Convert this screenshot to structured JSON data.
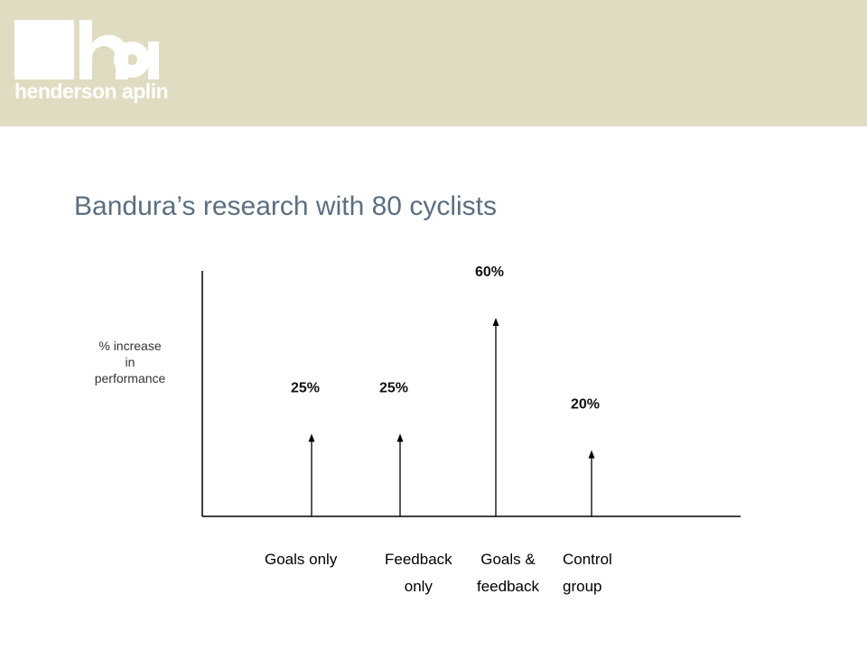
{
  "header": {
    "logo_text": "henderson aplin",
    "colors": {
      "banner": "#e0dcc2",
      "logo": "#ffffff"
    }
  },
  "title": "Bandura’s research with 80 cyclists",
  "chart_data": {
    "type": "bar",
    "ylabel_lines": [
      "% increase",
      "in",
      "performance"
    ],
    "categories": [
      {
        "line1": "Goals only",
        "line2": ""
      },
      {
        "line1": "Feedback",
        "line2": "only"
      },
      {
        "line1": "Goals &",
        "line2": "feedback"
      },
      {
        "line1": "Control",
        "line2": "group"
      }
    ],
    "values": [
      25,
      25,
      60,
      20
    ],
    "data_labels": [
      "25%",
      "25%",
      "60%",
      "20%"
    ],
    "ylim": [
      0,
      70
    ],
    "grid": false,
    "mark_style": "arrow",
    "colors": {
      "title": "#5b6f80",
      "marks": "#000000"
    }
  }
}
